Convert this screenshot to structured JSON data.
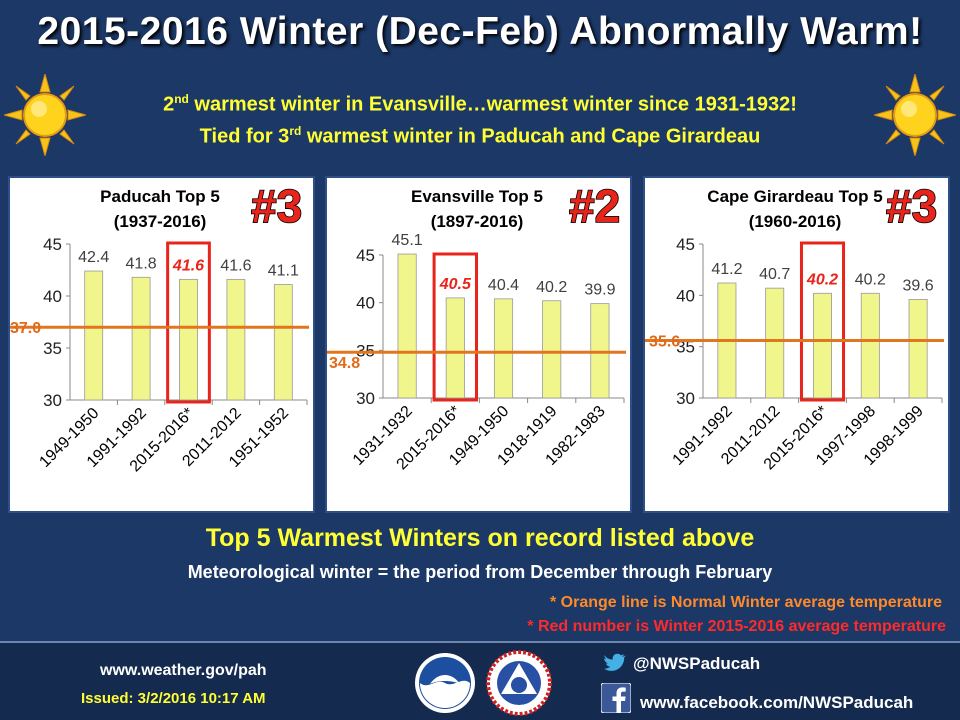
{
  "header": {
    "title": "2015-2016 Winter (Dec-Feb) Abnormally Warm!",
    "line1_pre": "2",
    "line1_sup": "nd",
    "line1_post": " warmest winter in Evansville…warmest winter since 1931-1932!",
    "line2_pre": "Tied for 3",
    "line2_sup": "rd",
    "line2_post": " warmest winter in Paducah and Cape Girardeau"
  },
  "chart_data": [
    {
      "type": "bar",
      "title": "Paducah Top 5",
      "subtitle": "(1937-2016)",
      "rank": "#3",
      "categories": [
        "1949-1950",
        "1991-1992",
        "2015-2016*",
        "2011-2012",
        "1951-1952"
      ],
      "values": [
        42.4,
        41.8,
        41.6,
        41.6,
        41.1
      ],
      "value_labels": [
        "42.4",
        "41.8",
        "41.6",
        "41.6",
        "41.1"
      ],
      "highlight_index": 2,
      "normal": 37.0,
      "normal_label": "37.0",
      "ylim": [
        30,
        45
      ],
      "yticks": [
        "30",
        "35",
        "40",
        "45"
      ],
      "bar_color": "#f0f58c",
      "normal_color": "#e2761e",
      "highlight_color": "#e8241b"
    },
    {
      "type": "bar",
      "title": "Evansville Top 5",
      "subtitle": "(1897-2016)",
      "rank": "#2",
      "categories": [
        "1931-1932",
        "2015-2016*",
        "1949-1950",
        "1918-1919",
        "1982-1983"
      ],
      "values": [
        45.1,
        40.5,
        40.4,
        40.2,
        39.9
      ],
      "value_labels": [
        "45.1",
        "40.5",
        "40.4",
        "40.2",
        "39.9"
      ],
      "highlight_index": 1,
      "normal": 34.8,
      "normal_label": "34.8",
      "ylim": [
        30,
        45
      ],
      "yticks": [
        "30",
        "35",
        "40",
        "45"
      ],
      "bar_color": "#f0f58c",
      "normal_color": "#e2761e",
      "highlight_color": "#e8241b"
    },
    {
      "type": "bar",
      "title": "Cape Girardeau Top 5",
      "subtitle": "(1960-2016)",
      "rank": "#3",
      "categories": [
        "1991-1992",
        "2011-2012",
        "2015-2016*",
        "1997-1998",
        "1998-1999"
      ],
      "values": [
        41.2,
        40.7,
        40.2,
        40.2,
        39.6
      ],
      "value_labels": [
        "41.2",
        "40.7",
        "40.2",
        "40.2",
        "39.6"
      ],
      "highlight_index": 2,
      "normal": 35.6,
      "normal_label": "35.6",
      "ylim": [
        30,
        45
      ],
      "yticks": [
        "30",
        "35",
        "40",
        "45"
      ],
      "bar_color": "#f0f58c",
      "normal_color": "#e2761e",
      "highlight_color": "#e8241b"
    }
  ],
  "captions": {
    "headline": "Top 5 Warmest Winters on record listed above",
    "definition": "Meteorological winter = the period from December through February",
    "note_orange": "* Orange line is Normal Winter average temperature",
    "note_red": "* Red number is Winter 2015-2016 average temperature"
  },
  "footer": {
    "website": "www.weather.gov/pah",
    "issued": "Issued: 3/2/2016 10:17 AM",
    "twitter": "@NWSPaducah",
    "facebook": "www.facebook.com/NWSPaducah",
    "twitter_icon": "twitter-bird-icon",
    "facebook_icon": "facebook-f-icon"
  }
}
